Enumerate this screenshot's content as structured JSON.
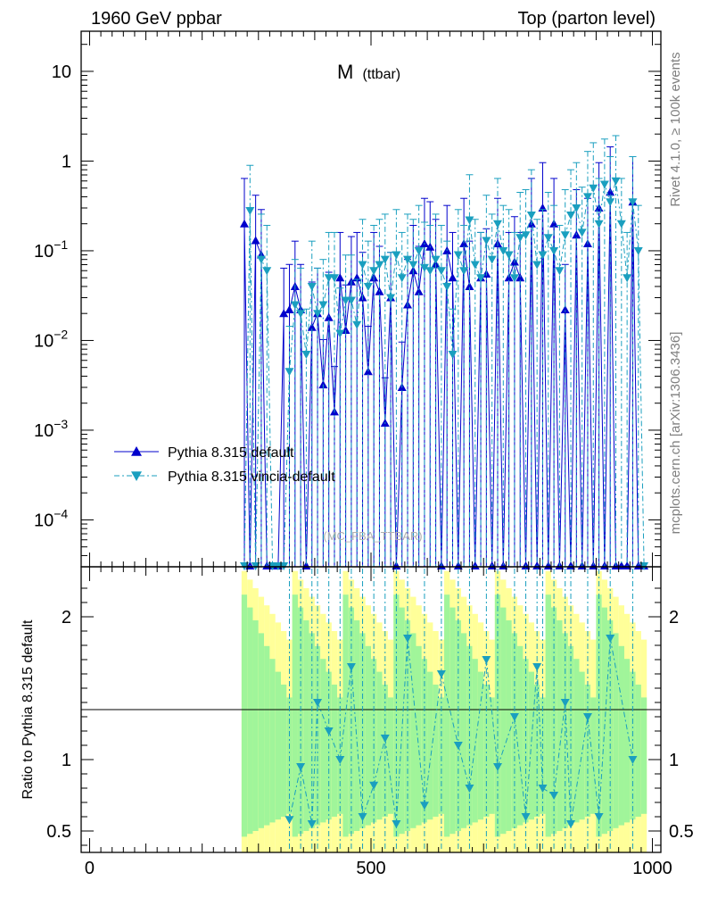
{
  "header": {
    "left": "1960 GeV ppbar",
    "right": "Top (parton level)"
  },
  "side_labels": {
    "rivet": "Rivet 4.1.0, ≥ 100k events",
    "mcplots": "mcplots.cern.ch [arXiv:1306.3436]"
  },
  "chart_data": {
    "type": "line",
    "title": "M",
    "title_sub": "(ttbar)",
    "watermark": "(MC_FBA_TTBAR)",
    "xlabel": "",
    "ylabel": "",
    "x_ticks": [
      "0",
      "500",
      "1000"
    ],
    "xlim": [
      -15,
      1015
    ],
    "log_y": true,
    "ylim": [
      3e-05,
      28
    ],
    "y_ticks": [
      {
        "v": 10,
        "label": "10"
      },
      {
        "v": 1,
        "label": "1"
      },
      {
        "v": 0.1,
        "label": "10",
        "exp": "−1"
      },
      {
        "v": 0.01,
        "label": "10",
        "exp": "−2"
      },
      {
        "v": 0.001,
        "label": "10",
        "exp": "−3"
      },
      {
        "v": 0.0001,
        "label": "10",
        "exp": "−4"
      }
    ],
    "legend_placement": "bottom-left",
    "series": [
      {
        "name": "Pythia 8.315 default",
        "color": "#0000cc",
        "marker": "triangle-up",
        "linestyle": "solid",
        "points": [
          [
            275,
            0.2
          ],
          [
            285,
            0
          ],
          [
            295,
            0.13
          ],
          [
            305,
            0.09
          ],
          [
            315,
            0
          ],
          [
            325,
            0
          ],
          [
            335,
            0
          ],
          [
            345,
            0.02
          ],
          [
            355,
            0.022
          ],
          [
            365,
            0.04
          ],
          [
            375,
            0.022
          ],
          [
            385,
            0
          ],
          [
            395,
            0.014
          ],
          [
            405,
            0.02
          ],
          [
            415,
            0.0032
          ],
          [
            425,
            0.018
          ],
          [
            435,
            0.0016
          ],
          [
            445,
            0.05
          ],
          [
            455,
            0.013
          ],
          [
            465,
            0.045
          ],
          [
            475,
            0.05
          ],
          [
            485,
            0.03
          ],
          [
            495,
            0.0045
          ],
          [
            505,
            0.05
          ],
          [
            515,
            0.035
          ],
          [
            525,
            0.0012
          ],
          [
            535,
            0.03
          ],
          [
            545,
            0.0
          ],
          [
            555,
            0.003
          ],
          [
            565,
            0.025
          ],
          [
            575,
            0.06
          ],
          [
            585,
            0.035
          ],
          [
            595,
            0.12
          ],
          [
            605,
            0.11
          ],
          [
            615,
            0.07
          ],
          [
            625,
            0.0
          ],
          [
            635,
            0.1
          ],
          [
            645,
            0.05
          ],
          [
            655,
            0.0
          ],
          [
            665,
            0.12
          ],
          [
            675,
            0.04
          ],
          [
            685,
            0.0
          ],
          [
            695,
            0.05
          ],
          [
            705,
            0.055
          ],
          [
            715,
            0.0
          ],
          [
            725,
            0.12
          ],
          [
            735,
            0.0
          ],
          [
            745,
            0.05
          ],
          [
            755,
            0.075
          ],
          [
            765,
            0.05
          ],
          [
            775,
            0.0
          ],
          [
            785,
            0.2
          ],
          [
            795,
            0.0
          ],
          [
            805,
            0.3
          ],
          [
            815,
            0.0
          ],
          [
            825,
            0.2
          ],
          [
            835,
            0.0
          ],
          [
            845,
            0.022
          ],
          [
            855,
            0.0
          ],
          [
            865,
            0.15
          ],
          [
            875,
            0.0
          ],
          [
            885,
            0.12
          ],
          [
            895,
            0.0
          ],
          [
            905,
            0.3
          ],
          [
            915,
            0.0
          ],
          [
            925,
            0.45
          ],
          [
            935,
            0.0
          ],
          [
            945,
            0.0
          ],
          [
            955,
            0.0
          ],
          [
            965,
            0.35
          ],
          [
            975,
            0.0
          ],
          [
            985,
            0.0
          ]
        ]
      },
      {
        "name": "Pythia 8.315 vincia-default",
        "color": "#1a9fbf",
        "marker": "triangle-down",
        "linestyle": "dashdot",
        "points": [
          [
            275,
            0
          ],
          [
            285,
            0.28
          ],
          [
            295,
            0
          ],
          [
            305,
            0.08
          ],
          [
            315,
            0.06
          ],
          [
            325,
            0
          ],
          [
            335,
            0
          ],
          [
            345,
            0
          ],
          [
            355,
            0.0045
          ],
          [
            365,
            0.025
          ],
          [
            375,
            0.02
          ],
          [
            385,
            0.007
          ],
          [
            395,
            0.04
          ],
          [
            405,
            0.02
          ],
          [
            415,
            0.025
          ],
          [
            425,
            0.05
          ],
          [
            435,
            0.05
          ],
          [
            445,
            0.012
          ],
          [
            455,
            0.028
          ],
          [
            465,
            0.028
          ],
          [
            475,
            0.015
          ],
          [
            485,
            0.07
          ],
          [
            495,
            0.04
          ],
          [
            505,
            0.06
          ],
          [
            515,
            0.07
          ],
          [
            525,
            0.08
          ],
          [
            535,
            0.03
          ],
          [
            545,
            0.09
          ],
          [
            555,
            0.05
          ],
          [
            565,
            0.08
          ],
          [
            575,
            0.07
          ],
          [
            585,
            0.1
          ],
          [
            595,
            0.065
          ],
          [
            605,
            0.06
          ],
          [
            615,
            0.08
          ],
          [
            625,
            0.06
          ],
          [
            635,
            0.04
          ],
          [
            645,
            0.007
          ],
          [
            655,
            0.09
          ],
          [
            665,
            0.06
          ],
          [
            675,
            0.22
          ],
          [
            685,
            0.07
          ],
          [
            695,
            0.05
          ],
          [
            705,
            0.13
          ],
          [
            715,
            0.08
          ],
          [
            725,
            0.2
          ],
          [
            735,
            0.1
          ],
          [
            745,
            0.09
          ],
          [
            755,
            0.05
          ],
          [
            765,
            0.14
          ],
          [
            775,
            0.15
          ],
          [
            785,
            0.25
          ],
          [
            795,
            0.07
          ],
          [
            805,
            0.09
          ],
          [
            815,
            0.14
          ],
          [
            825,
            0.1
          ],
          [
            835,
            0.06
          ],
          [
            845,
            0.15
          ],
          [
            855,
            0.25
          ],
          [
            865,
            0.3
          ],
          [
            875,
            0.16
          ],
          [
            885,
            0.4
          ],
          [
            895,
            0.5
          ],
          [
            905,
            0.2
          ],
          [
            915,
            0.55
          ],
          [
            925,
            0.35
          ],
          [
            935,
            0.6
          ],
          [
            945,
            0.2
          ],
          [
            955,
            0.05
          ],
          [
            965,
            0.35
          ],
          [
            975,
            0.1
          ],
          [
            985,
            0.0
          ]
        ]
      }
    ],
    "ratio": {
      "ylabel": "Ratio to Pythia 8.315 default",
      "ylim": [
        0.35,
        2.35
      ],
      "y_ticks": [
        {
          "v": 0.5,
          "label": "0.5"
        },
        {
          "v": 1,
          "label": "1"
        },
        {
          "v": 2,
          "label": "2"
        }
      ],
      "band_color_inner": "#a0f59a",
      "band_color_outer": "#ffff99",
      "points": [
        [
          355,
          0.58
        ],
        [
          375,
          0.95
        ],
        [
          395,
          0.55
        ],
        [
          405,
          1.4
        ],
        [
          425,
          1.2
        ],
        [
          445,
          1.0
        ],
        [
          465,
          1.65
        ],
        [
          485,
          0.6
        ],
        [
          505,
          0.82
        ],
        [
          525,
          1.15
        ],
        [
          545,
          0.55
        ],
        [
          565,
          1.85
        ],
        [
          595,
          0.68
        ],
        [
          625,
          1.6
        ],
        [
          655,
          1.1
        ],
        [
          675,
          0.8
        ],
        [
          705,
          1.7
        ],
        [
          725,
          0.95
        ],
        [
          755,
          1.3
        ],
        [
          775,
          0.6
        ],
        [
          795,
          1.65
        ],
        [
          805,
          0.8
        ],
        [
          825,
          0.75
        ],
        [
          845,
          1.4
        ],
        [
          855,
          0.55
        ],
        [
          885,
          1.3
        ],
        [
          905,
          0.6
        ],
        [
          925,
          1.85
        ],
        [
          965,
          1.0
        ]
      ]
    }
  }
}
